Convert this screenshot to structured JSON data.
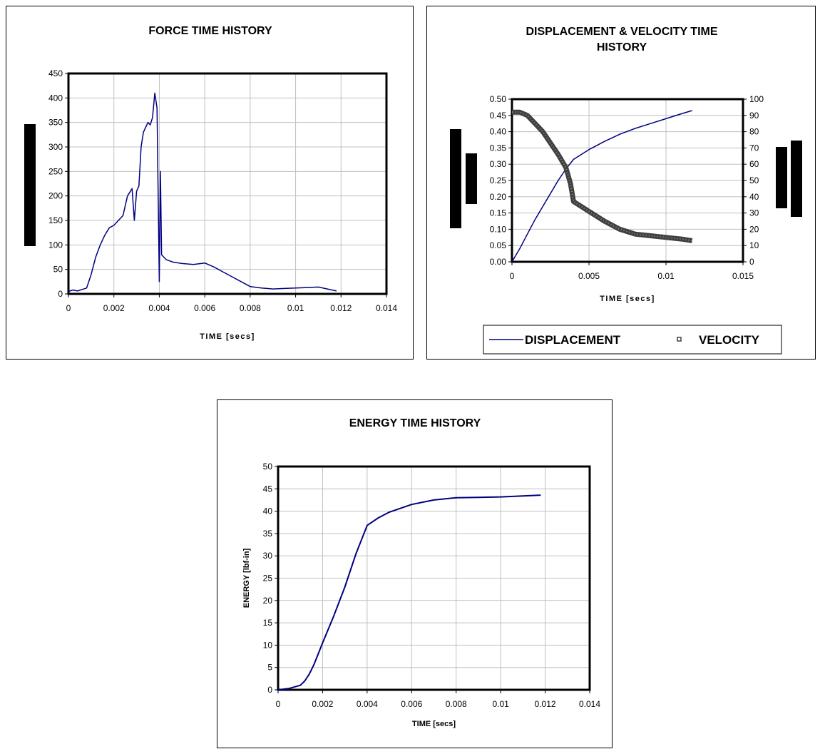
{
  "chart_data": [
    {
      "type": "line",
      "title": "FORCE TIME HISTORY",
      "xlabel": "TIME [secs]",
      "ylabel": "",
      "xlim": [
        0,
        0.014
      ],
      "ylim": [
        0,
        450
      ],
      "xticks": [
        "0",
        "0.002",
        "0.004",
        "0.006",
        "0.008",
        "0.01",
        "0.012",
        "0.014"
      ],
      "yticks": [
        "0",
        "50",
        "100",
        "150",
        "200",
        "250",
        "300",
        "350",
        "400",
        "450"
      ],
      "grid": true,
      "legend": "none",
      "line_color": "#000080",
      "series": [
        {
          "x": [
            0,
            0.0002,
            0.0004,
            0.0006,
            0.0008,
            0.001,
            0.0012,
            0.0014,
            0.0016,
            0.0018,
            0.002,
            0.0022,
            0.0024,
            0.0026,
            0.0028,
            0.0029,
            0.003,
            0.0031,
            0.0032,
            0.0033,
            0.0034,
            0.0035,
            0.0036,
            0.0037,
            0.0038,
            0.0039,
            0.004,
            0.00405,
            0.0041,
            0.0043,
            0.0046,
            0.005,
            0.0055,
            0.006,
            0.0064,
            0.0068,
            0.0072,
            0.0076,
            0.008,
            0.0085,
            0.009,
            0.0095,
            0.01,
            0.0105,
            0.011,
            0.0114,
            0.0118
          ],
          "y": [
            5,
            8,
            6,
            9,
            12,
            40,
            75,
            100,
            120,
            135,
            140,
            150,
            160,
            200,
            215,
            150,
            210,
            220,
            300,
            330,
            340,
            350,
            345,
            360,
            410,
            380,
            25,
            250,
            80,
            70,
            65,
            62,
            60,
            63,
            55,
            45,
            35,
            25,
            15,
            12,
            10,
            11,
            12,
            13,
            14,
            10,
            6
          ]
        }
      ]
    },
    {
      "type": "line",
      "title": "DISPLACEMENT & VELOCITY TIME HISTORY",
      "xlabel": "TIME [secs]",
      "ylabel": "",
      "ylabel_right": "",
      "xlim": [
        0,
        0.015
      ],
      "ylim": [
        0,
        0.5
      ],
      "ylim_right": [
        0,
        100
      ],
      "xticks": [
        "0",
        "0.005",
        "0.01",
        "0.015"
      ],
      "yticks": [
        "0.00",
        "0.05",
        "0.10",
        "0.15",
        "0.20",
        "0.25",
        "0.30",
        "0.35",
        "0.40",
        "0.45",
        "0.50"
      ],
      "yticks_right": [
        "0",
        "10",
        "20",
        "30",
        "40",
        "50",
        "60",
        "70",
        "80",
        "90",
        "100"
      ],
      "grid": true,
      "legend": "bottom",
      "series": [
        {
          "name": "DISPLACEMENT",
          "axis": "left",
          "color": "#000080",
          "x": [
            0,
            0.0005,
            0.001,
            0.0015,
            0.002,
            0.0025,
            0.003,
            0.0035,
            0.004,
            0.005,
            0.006,
            0.007,
            0.008,
            0.009,
            0.01,
            0.011,
            0.0117
          ],
          "y": [
            0,
            0.04,
            0.085,
            0.13,
            0.17,
            0.21,
            0.25,
            0.285,
            0.315,
            0.345,
            0.37,
            0.392,
            0.41,
            0.425,
            0.44,
            0.455,
            0.465
          ]
        },
        {
          "name": "VELOCITY",
          "axis": "right",
          "color": "#404040",
          "x": [
            0,
            0.0005,
            0.001,
            0.0015,
            0.002,
            0.0025,
            0.003,
            0.0035,
            0.0038,
            0.004,
            0.005,
            0.006,
            0.007,
            0.008,
            0.009,
            0.01,
            0.011,
            0.0117
          ],
          "y": [
            92,
            92,
            90,
            85,
            80,
            73,
            66,
            58,
            48,
            37,
            31,
            25,
            20,
            17,
            16,
            15,
            14,
            13
          ]
        }
      ]
    },
    {
      "type": "line",
      "title": "ENERGY TIME HISTORY",
      "xlabel": "TIME [secs]",
      "ylabel": "ENERGY [lbf-in]",
      "xlim": [
        0,
        0.014
      ],
      "ylim": [
        0,
        50
      ],
      "xticks": [
        "0",
        "0.002",
        "0.004",
        "0.006",
        "0.008",
        "0.01",
        "0.012",
        "0.014"
      ],
      "yticks": [
        "0",
        "5",
        "10",
        "15",
        "20",
        "25",
        "30",
        "35",
        "40",
        "45",
        "50"
      ],
      "grid": true,
      "legend": "none",
      "line_color": "#000080",
      "series": [
        {
          "x": [
            0,
            0.0005,
            0.001,
            0.0012,
            0.0014,
            0.0016,
            0.0018,
            0.002,
            0.0025,
            0.003,
            0.0035,
            0.004,
            0.0045,
            0.005,
            0.006,
            0.007,
            0.008,
            0.009,
            0.01,
            0.011,
            0.0118
          ],
          "y": [
            0,
            0.3,
            1,
            2,
            3.5,
            5.5,
            8,
            10.5,
            16.5,
            23,
            30.5,
            36.8,
            38.5,
            39.8,
            41.5,
            42.5,
            43,
            43.1,
            43.2,
            43.4,
            43.6
          ]
        }
      ]
    }
  ]
}
